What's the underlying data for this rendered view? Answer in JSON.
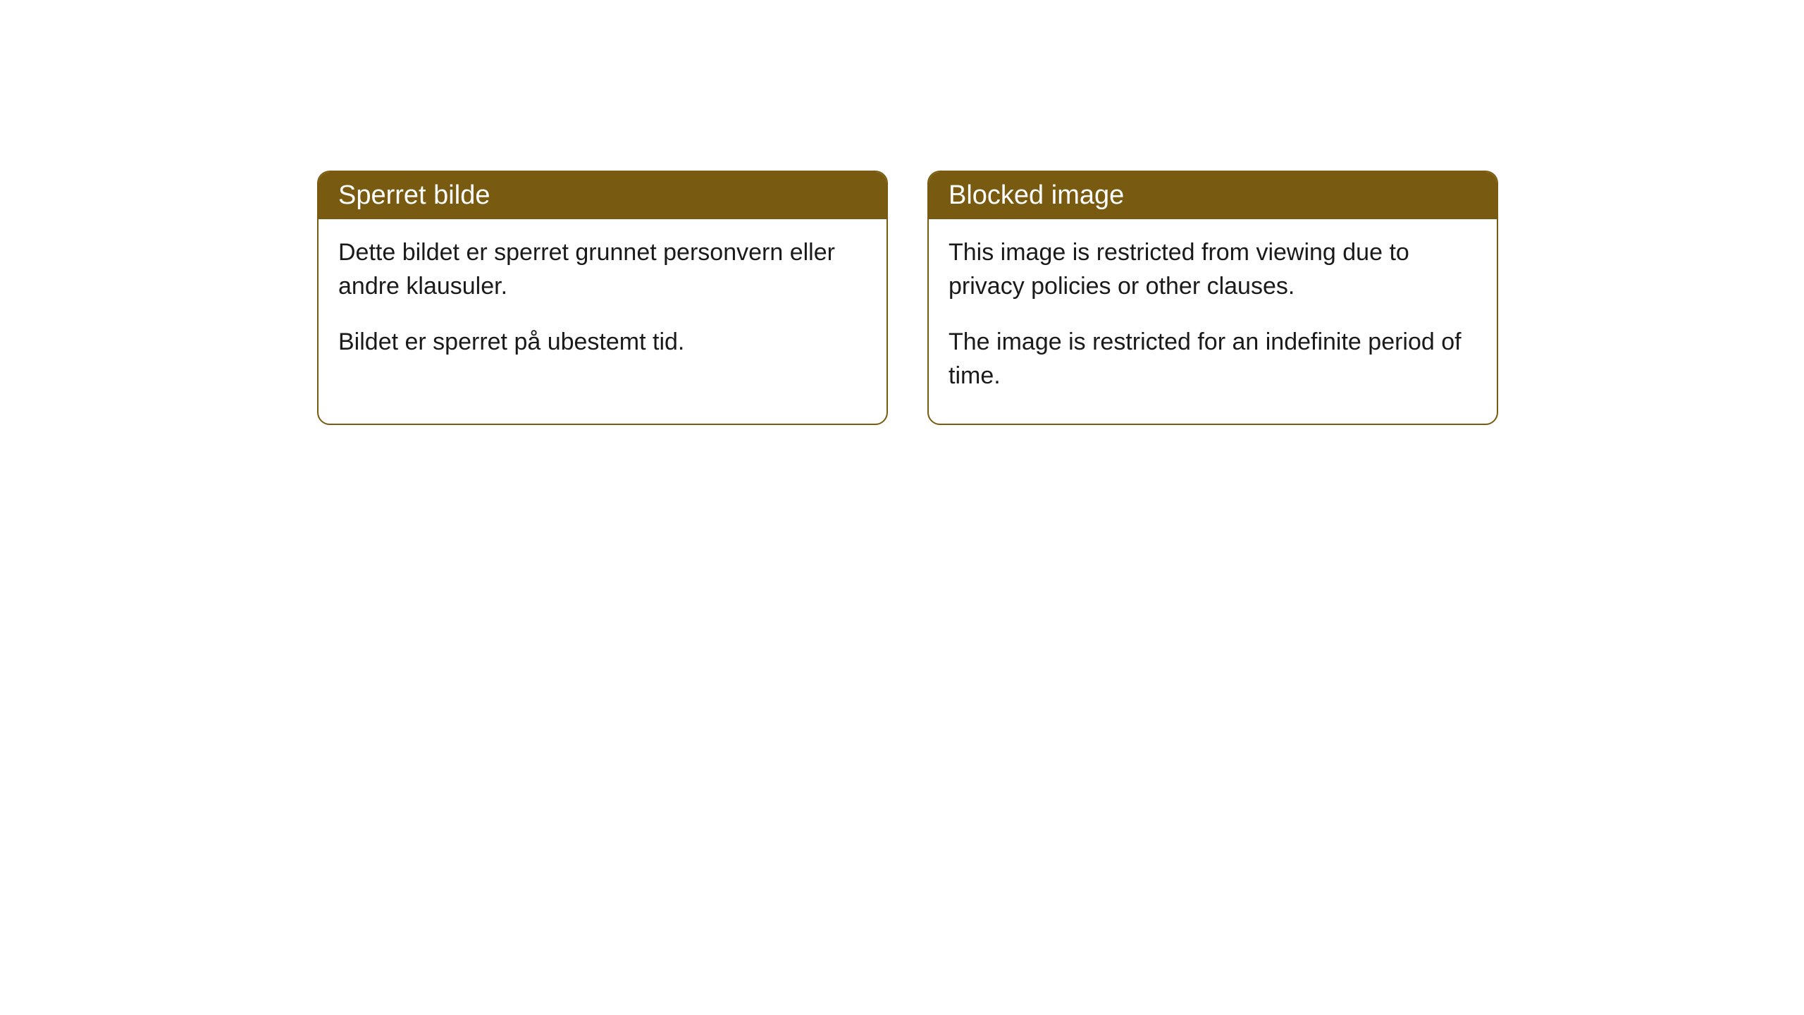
{
  "cards": {
    "left": {
      "header": "Sperret bilde",
      "paragraph1": "Dette bildet er sperret grunnet personvern eller andre klausuler.",
      "paragraph2": "Bildet er sperret på ubestemt tid."
    },
    "right": {
      "header": "Blocked image",
      "paragraph1": "This image is restricted from viewing due to privacy policies or other clauses.",
      "paragraph2": "The image is restricted for an indefinite period of time."
    }
  },
  "styling": {
    "header_bg_color": "#785a10",
    "header_text_color": "#ffffff",
    "border_color": "#785a10",
    "body_bg_color": "#ffffff",
    "body_text_color": "#1a1a1a",
    "border_radius": 18,
    "header_fontsize": 38,
    "body_fontsize": 34
  }
}
